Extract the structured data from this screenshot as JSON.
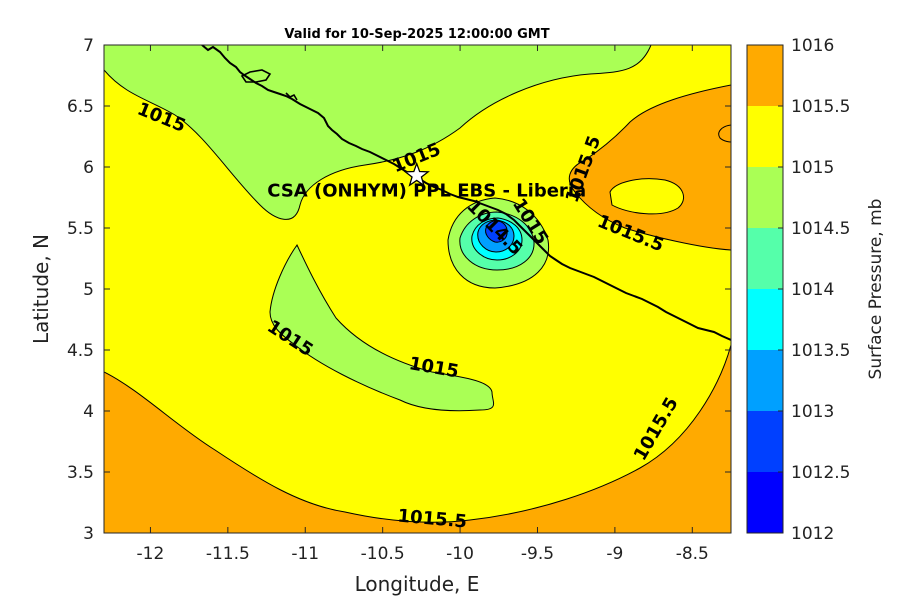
{
  "title": "Valid for 10-Sep-2025 12:00:00 GMT",
  "x_axis": {
    "label": "Longitude, E",
    "range": [
      -12.3,
      -8.25
    ],
    "ticks": [
      {
        "value": -12,
        "label": "-12"
      },
      {
        "value": -11.5,
        "label": "-11.5"
      },
      {
        "value": -11,
        "label": "-11"
      },
      {
        "value": -10.5,
        "label": "-10.5"
      },
      {
        "value": -10,
        "label": "-10"
      },
      {
        "value": -9.5,
        "label": "-9.5"
      },
      {
        "value": -9,
        "label": "-9"
      },
      {
        "value": -8.5,
        "label": "-8.5"
      }
    ]
  },
  "y_axis": {
    "label": "Latitude, N",
    "range": [
      3,
      7
    ],
    "ticks": [
      {
        "value": 3,
        "label": "3"
      },
      {
        "value": 3.5,
        "label": "3.5"
      },
      {
        "value": 4,
        "label": "4"
      },
      {
        "value": 4.5,
        "label": "4.5"
      },
      {
        "value": 5,
        "label": "5"
      },
      {
        "value": 5.5,
        "label": "5.5"
      },
      {
        "value": 6,
        "label": "6"
      },
      {
        "value": 6.5,
        "label": "6.5"
      },
      {
        "value": 7,
        "label": "7"
      }
    ]
  },
  "colorbar": {
    "label": "Surface Pressure, mb",
    "levels": [
      {
        "value": 1012,
        "label": "1012",
        "color": "#0000ff"
      },
      {
        "value": 1012.5,
        "label": "1012.5",
        "color": "#0040ff"
      },
      {
        "value": 1013,
        "label": "1013",
        "color": "#00a0ff"
      },
      {
        "value": 1013.5,
        "label": "1013.5",
        "color": "#00ffff"
      },
      {
        "value": 1014,
        "label": "1014",
        "color": "#55ffaa"
      },
      {
        "value": 1014.5,
        "label": "1014.5",
        "color": "#aaff55"
      },
      {
        "value": 1015,
        "label": "1015",
        "color": "#ffff00"
      },
      {
        "value": 1015.5,
        "label": "1015.5",
        "color": "#ffaa00"
      },
      {
        "value": 1016,
        "label": "1016",
        "color": "#ff5500"
      }
    ]
  },
  "colors": {
    "band_1015_1015_5": "#ffff00",
    "band_1015_5_1016": "#ffaa00",
    "band_1014_5_1015": "#aaff55",
    "band_1014_1014_5": "#55ffaa",
    "band_1013_5_1014": "#00ffff",
    "band_1013_1013_5": "#00a0ff",
    "band_1012_5_1013": "#0040ff"
  },
  "contour_labels": [
    {
      "text": "1015",
      "lon": -11.93,
      "lat": 6.4
    },
    {
      "text": "1015",
      "lon": -10.28,
      "lat": 6.07
    },
    {
      "text": "1015.5",
      "lon": -9.2,
      "lat": 5.98
    },
    {
      "text": "1015",
      "lon": -9.55,
      "lat": 5.55
    },
    {
      "text": "1014.5",
      "lon": -9.78,
      "lat": 5.5
    },
    {
      "text": "1015.5",
      "lon": -8.9,
      "lat": 5.45
    },
    {
      "text": "1015",
      "lon": -11.1,
      "lat": 4.59
    },
    {
      "text": "1015",
      "lon": -10.17,
      "lat": 4.35
    },
    {
      "text": "1015.5",
      "lon": -8.73,
      "lat": 3.85
    },
    {
      "text": "1015.5",
      "lon": -10.18,
      "lat": 3.11
    }
  ],
  "site": {
    "name": "CSA (ONHYM) PPL EBS - Liberia",
    "lon": -10.28,
    "lat": 5.93,
    "marker": "star-icon"
  }
}
